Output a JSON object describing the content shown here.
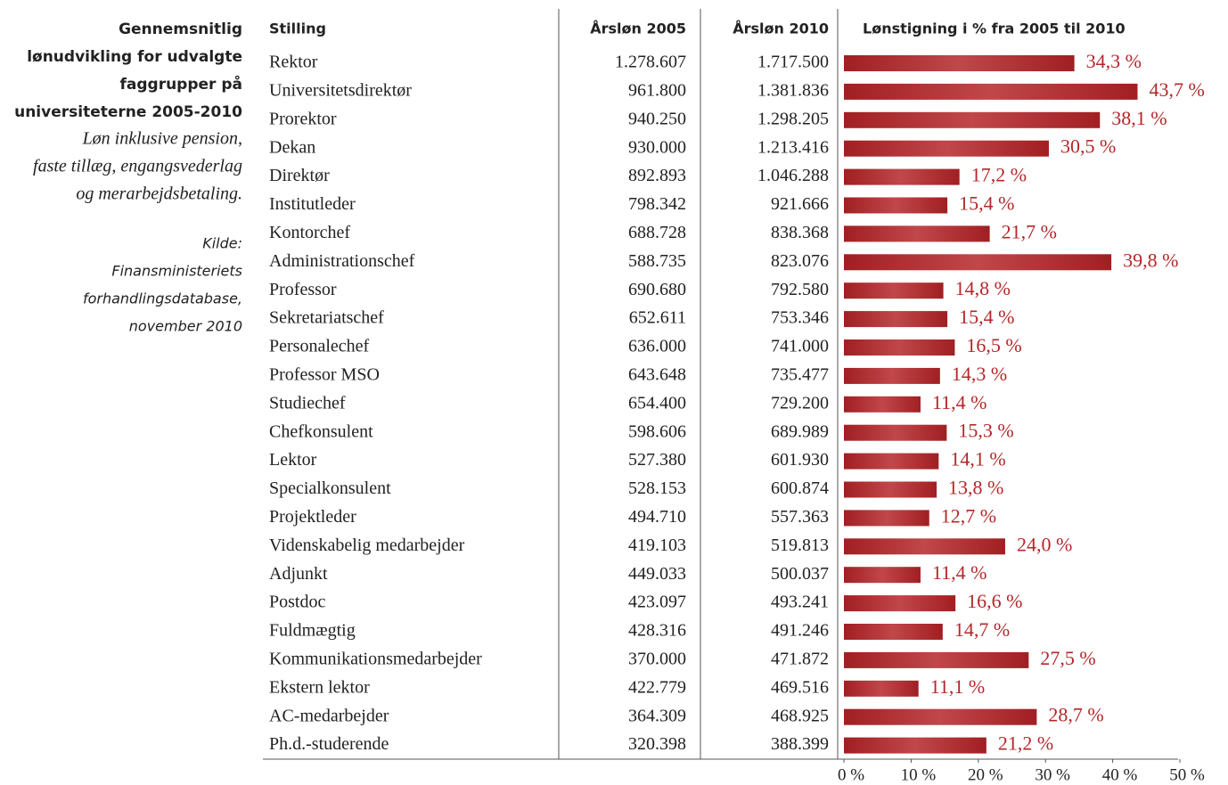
{
  "chart_data": {
    "type": "bar",
    "title": [
      "Gennemsnitlig",
      "lønudvikling for udvalgte",
      "faggrupper på",
      "universiteterne 2005-2010"
    ],
    "subtitle": [
      "Løn inklusive pension,",
      "faste tillæg, engangsvederlag",
      "og merarbejdsbetaling."
    ],
    "source": [
      "Kilde:",
      "Finansministeriets",
      "forhandlingsdatabase,",
      "november 2010"
    ],
    "headers": [
      "Stilling",
      "Årsløn 2005",
      "Årsløn 2010",
      "Lønstigning i % fra 2005 til 2010"
    ],
    "categories": [
      "Rektor",
      "Universitetsdirektør",
      "Prorektor",
      "Dekan",
      "Direktør",
      "Institutleder",
      "Kontorchef",
      "Administrationschef",
      "Professor",
      "Sekretariatschef",
      "Personalechef",
      "Professor MSO",
      "Studiechef",
      "Chefkonsulent",
      "Lektor",
      "Specialkonsulent",
      "Projektleder",
      "Videnskabelig medarbejder",
      "Adjunkt",
      "Postdoc",
      "Fuldmægtig",
      "Kommunikationsmedarbejder",
      "Ekstern lektor",
      "AC-medarbejder",
      "Ph.d.-studerende"
    ],
    "salary_2005": [
      "1.278.607",
      "961.800",
      "940.250",
      "930.000",
      "892.893",
      "798.342",
      "688.728",
      "588.735",
      "690.680",
      "652.611",
      "636.000",
      "643.648",
      "654.400",
      "598.606",
      "527.380",
      "528.153",
      "494.710",
      "419.103",
      "449.033",
      "423.097",
      "428.316",
      "370.000",
      "422.779",
      "364.309",
      "320.398"
    ],
    "salary_2010": [
      "1.717.500",
      "1.381.836",
      "1.298.205",
      "1.213.416",
      "1.046.288",
      "921.666",
      "838.368",
      "823.076",
      "792.580",
      "753.346",
      "741.000",
      "735.477",
      "729.200",
      "689.989",
      "601.930",
      "600.874",
      "557.363",
      "519.813",
      "500.037",
      "493.241",
      "491.246",
      "471.872",
      "469.516",
      "468.925",
      "388.399"
    ],
    "values": [
      34.3,
      43.7,
      38.1,
      30.5,
      17.2,
      15.4,
      21.7,
      39.8,
      14.8,
      15.4,
      16.5,
      14.3,
      11.4,
      15.3,
      14.1,
      13.8,
      12.7,
      24.0,
      11.4,
      16.6,
      14.7,
      27.5,
      11.1,
      28.7,
      21.2
    ],
    "value_labels": [
      "34,3 %",
      "43,7 %",
      "38,1 %",
      "30,5 %",
      "17,2 %",
      "15,4 %",
      "21,7 %",
      "39,8 %",
      "14,8 %",
      "15,4 %",
      "16,5 %",
      "14,3 %",
      "11,4 %",
      "15,3 %",
      "14,1 %",
      "13,8 %",
      "12,7 %",
      "24,0 %",
      "11,4 %",
      "16,6 %",
      "14,7 %",
      "27,5 %",
      "11,1 %",
      "28,7 %",
      "21,2 %"
    ],
    "color": "#b3272a",
    "xlim": [
      0,
      50
    ],
    "xticks": [
      {
        "value": 0,
        "label": "0 %"
      },
      {
        "value": 10,
        "label": "10 %"
      },
      {
        "value": 20,
        "label": "20 %"
      },
      {
        "value": 30,
        "label": "30 %"
      },
      {
        "value": 40,
        "label": "40 %"
      },
      {
        "value": 50,
        "label": "50 %"
      }
    ]
  }
}
